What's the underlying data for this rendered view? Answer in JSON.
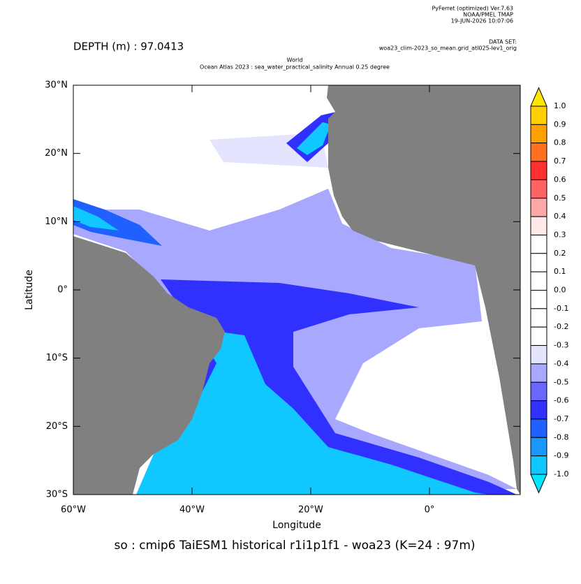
{
  "header": {
    "program": "PyFerret (optimized) Ver.7.63",
    "org": "NOAA/PMEL TMAP",
    "date": "19-JUN-2026 10:07:06",
    "dataset_label": "DATA SET:",
    "dataset": "woa23_clim-2023_so_mean.grid_atl025-lev1_orig",
    "depth": "DEPTH (m) : 97.0413",
    "title_line1": "World",
    "title_line2": "Ocean Atlas 2023 : sea_water_practical_salinity Annual  0.25 degree"
  },
  "chart_data": {
    "type": "map",
    "xlabel": "Longitude",
    "ylabel": "Latitude",
    "footer": "so : cmip6 TaiESM1 historical r1i1p1f1 - woa23  (K=24 : 97m)",
    "xlim": [
      -60,
      15.3
    ],
    "ylim": [
      -30,
      30
    ],
    "xticks": [
      {
        "value": -60,
        "label": "60°W"
      },
      {
        "value": -40,
        "label": "40°W"
      },
      {
        "value": -20,
        "label": "20°W"
      },
      {
        "value": 0,
        "label": "0°"
      }
    ],
    "yticks": [
      {
        "value": 30,
        "label": "30°N"
      },
      {
        "value": 20,
        "label": "20°N"
      },
      {
        "value": 10,
        "label": "10°N"
      },
      {
        "value": 0,
        "label": "0°"
      },
      {
        "value": -10,
        "label": "10°S"
      },
      {
        "value": -20,
        "label": "20°S"
      },
      {
        "value": -30,
        "label": "30°S"
      }
    ],
    "colorbar": {
      "levels": [
        {
          "value": 1,
          "label": "1.0"
        },
        0.9,
        0.8,
        0.7,
        0.6,
        0.5,
        0.4,
        0.3,
        0.2,
        0.1,
        {
          "value": 0,
          "label": "0.0"
        },
        -0.1,
        -0.2,
        -0.3,
        -0.4,
        -0.5,
        -0.6,
        -0.7,
        -0.8,
        -0.9,
        {
          "value": -1,
          "label": "-1.0"
        }
      ],
      "colors": [
        "#ffe800",
        "#ffd000",
        "#ffa000",
        "#ff7020",
        "#ff3030",
        "#ff6464",
        "#ffa8a8",
        "#ffe8e8",
        "#ffffff",
        "#ffffff",
        "#ffffff",
        "#ffffff",
        "#ffffff",
        "#ffffff",
        "#e4e4ff",
        "#a8a8ff",
        "#6868ff",
        "#3030ff",
        "#2060ff",
        "#1898ff",
        "#10c8ff",
        "#00e8ff"
      ]
    }
  }
}
